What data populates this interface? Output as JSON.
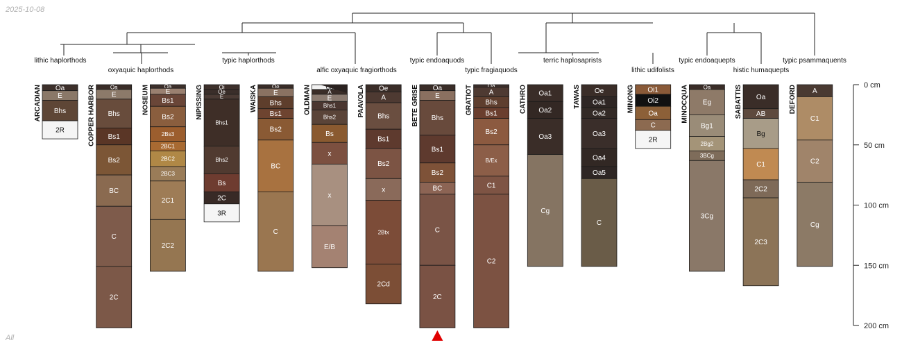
{
  "date_stamp": "2025-10-08",
  "filter_label": "All",
  "depth_axis": {
    "max_depth": 200,
    "ticks": [
      {
        "depth": 0,
        "label": "0 cm"
      },
      {
        "depth": 50,
        "label": "50 cm"
      },
      {
        "depth": 100,
        "label": "100 cm"
      },
      {
        "depth": 150,
        "label": "150 cm"
      },
      {
        "depth": 200,
        "label": "200 cm"
      }
    ]
  },
  "marker": {
    "profile": "BETE GRISE",
    "color": "#e00000"
  },
  "taxonomy": [
    {
      "label": "lithic haplorthods"
    },
    {
      "label": "oxyaquic haplorthods"
    },
    {
      "label": "typic haplorthods"
    },
    {
      "label": "alfic oxyaquic fragiorthods"
    },
    {
      "label": "typic endoaquods"
    },
    {
      "label": "typic fragiaquods"
    },
    {
      "label": "terric haplosaprists"
    },
    {
      "label": "lithic udifolists"
    },
    {
      "label": "typic endoaquepts"
    },
    {
      "label": "histic humaquepts"
    },
    {
      "label": "typic psammaquents"
    }
  ],
  "profiles": [
    {
      "name": "ARCADIAN",
      "horizons": [
        {
          "name": "Oa",
          "top": 0,
          "bottom": 5,
          "color": "#3d302b"
        },
        {
          "name": "E",
          "top": 5,
          "bottom": 13,
          "color": "#8a7868"
        },
        {
          "name": "Bhs",
          "top": 13,
          "bottom": 30,
          "color": "#5e4636"
        },
        {
          "name": "2R",
          "top": 30,
          "bottom": 45,
          "color": "#f5f5f5"
        }
      ]
    },
    {
      "name": "COPPER HARBOR",
      "horizons": [
        {
          "name": "Oa",
          "top": 0,
          "bottom": 4,
          "color": "#3a2d28"
        },
        {
          "name": "E",
          "top": 4,
          "bottom": 12,
          "color": "#8c7a6a"
        },
        {
          "name": "Bhs",
          "top": 12,
          "bottom": 36,
          "color": "#684c3c"
        },
        {
          "name": "Bs1",
          "top": 36,
          "bottom": 50,
          "color": "#5a3626"
        },
        {
          "name": "Bs2",
          "top": 50,
          "bottom": 75,
          "color": "#7c5636"
        },
        {
          "name": "BC",
          "top": 75,
          "bottom": 101,
          "color": "#8a6a50"
        },
        {
          "name": "C",
          "top": 101,
          "bottom": 151,
          "color": "#7e5b4b"
        },
        {
          "name": "2C",
          "top": 151,
          "bottom": 202,
          "color": "#7c5848"
        }
      ]
    },
    {
      "name": "NOSEUM",
      "horizons": [
        {
          "name": "Oa",
          "top": 0,
          "bottom": 3,
          "color": "#3d302b"
        },
        {
          "name": "E",
          "top": 3,
          "bottom": 8,
          "color": "#9a8070"
        },
        {
          "name": "Bs1",
          "top": 8,
          "bottom": 18,
          "color": "#6a4638"
        },
        {
          "name": "Bs2",
          "top": 18,
          "bottom": 35,
          "color": "#8a5e3e"
        },
        {
          "name": "2Bs3",
          "top": 35,
          "bottom": 47,
          "color": "#9c5e2e"
        },
        {
          "name": "2BC1",
          "top": 47,
          "bottom": 55,
          "color": "#a86a32"
        },
        {
          "name": "2BC2",
          "top": 55,
          "bottom": 68,
          "color": "#b08846"
        },
        {
          "name": "2BC3",
          "top": 68,
          "bottom": 80,
          "color": "#9a7c58"
        },
        {
          "name": "2C1",
          "top": 80,
          "bottom": 112,
          "color": "#9e7c56"
        },
        {
          "name": "2C2",
          "top": 112,
          "bottom": 155,
          "color": "#957651"
        }
      ]
    },
    {
      "name": "NIPISSING",
      "horizons": [
        {
          "name": "Oi",
          "top": 0,
          "bottom": 4,
          "color": "#3d302b"
        },
        {
          "name": "Oe",
          "top": 4,
          "bottom": 8,
          "color": "#3a2e2a"
        },
        {
          "name": "E",
          "top": 8,
          "bottom": 12,
          "color": "#4a3a34"
        },
        {
          "name": "Bhs1",
          "top": 12,
          "bottom": 51,
          "color": "#3e2e27"
        },
        {
          "name": "Bhs2",
          "top": 51,
          "bottom": 74,
          "color": "#503a30"
        },
        {
          "name": "Bs",
          "top": 74,
          "bottom": 89,
          "color": "#6e3c30"
        },
        {
          "name": "2C",
          "top": 89,
          "bottom": 99,
          "color": "#382a26"
        },
        {
          "name": "3R",
          "top": 99,
          "bottom": 114,
          "color": "#f5f5f5"
        }
      ]
    },
    {
      "name": "WAISKA",
      "horizons": [
        {
          "name": "Oe",
          "top": 0,
          "bottom": 3,
          "color": "#3a2d28"
        },
        {
          "name": "E",
          "top": 3,
          "bottom": 10,
          "color": "#8a7262"
        },
        {
          "name": "Bhs",
          "top": 10,
          "bottom": 20,
          "color": "#5e3e2c"
        },
        {
          "name": "Bs1",
          "top": 20,
          "bottom": 28,
          "color": "#6e4430"
        },
        {
          "name": "Bs2",
          "top": 28,
          "bottom": 46,
          "color": "#8a5a34"
        },
        {
          "name": "BC",
          "top": 46,
          "bottom": 89,
          "color": "#a87240"
        },
        {
          "name": "C",
          "top": 89,
          "bottom": 155,
          "color": "#9a7650"
        }
      ]
    },
    {
      "name": "OLDMAN",
      "horizons": [
        {
          "name": "Oa",
          "top": 0,
          "bottom": 4,
          "color": "#f2f2f2"
        },
        {
          "name": "A",
          "top": 4,
          "bottom": 8,
          "color": "#3a2d28"
        },
        {
          "name": "E",
          "top": 8,
          "bottom": 14,
          "color": "#8a7a70"
        },
        {
          "name": "Bhs1",
          "top": 14,
          "bottom": 21,
          "color": "#4a3630"
        },
        {
          "name": "Bhs2",
          "top": 21,
          "bottom": 33,
          "color": "#5a4438"
        },
        {
          "name": "Bs",
          "top": 33,
          "bottom": 48,
          "color": "#8a5a30"
        },
        {
          "name": "x",
          "top": 48,
          "bottom": 66,
          "color": "#7c5040"
        },
        {
          "name": "x",
          "top": 66,
          "bottom": 117,
          "color": "#a89080"
        },
        {
          "name": "E/B",
          "top": 117,
          "bottom": 152,
          "color": "#a48272"
        }
      ]
    },
    {
      "name": "PAAVOLA",
      "horizons": [
        {
          "name": "Oe",
          "top": 0,
          "bottom": 6,
          "color": "#3a2d28"
        },
        {
          "name": "A",
          "top": 6,
          "bottom": 15,
          "color": "#4e3a32"
        },
        {
          "name": "Bhs",
          "top": 15,
          "bottom": 37,
          "color": "#6a4e40"
        },
        {
          "name": "Bs1",
          "top": 37,
          "bottom": 53,
          "color": "#5e3a2e"
        },
        {
          "name": "Bs2",
          "top": 53,
          "bottom": 78,
          "color": "#7c5444"
        },
        {
          "name": "x",
          "top": 78,
          "bottom": 96,
          "color": "#8a6a5a"
        },
        {
          "name": "2Btx",
          "top": 96,
          "bottom": 149,
          "color": "#7c4c38"
        },
        {
          "name": "2Cd",
          "top": 149,
          "bottom": 182,
          "color": "#7c4e36"
        }
      ]
    },
    {
      "name": "BETE GRISE",
      "horizons": [
        {
          "name": "Oa",
          "top": 0,
          "bottom": 5,
          "color": "#3a2d28"
        },
        {
          "name": "E",
          "top": 5,
          "bottom": 13,
          "color": "#8a7060"
        },
        {
          "name": "Bhs",
          "top": 13,
          "bottom": 42,
          "color": "#684a3c"
        },
        {
          "name": "Bs1",
          "top": 42,
          "bottom": 65,
          "color": "#5e3a2e"
        },
        {
          "name": "Bs2",
          "top": 65,
          "bottom": 81,
          "color": "#7e5238"
        },
        {
          "name": "BC",
          "top": 81,
          "bottom": 91,
          "color": "#8c6454"
        },
        {
          "name": "C",
          "top": 91,
          "bottom": 150,
          "color": "#7a5446"
        },
        {
          "name": "2C",
          "top": 150,
          "bottom": 202,
          "color": "#7a5244"
        }
      ]
    },
    {
      "name": "GRATIOT",
      "horizons": [
        {
          "name": "Oa",
          "top": 0,
          "bottom": 2,
          "color": "#3d302b"
        },
        {
          "name": "A",
          "top": 2,
          "bottom": 10,
          "color": "#4e3a32"
        },
        {
          "name": "Bhs",
          "top": 10,
          "bottom": 19,
          "color": "#5e3e2e"
        },
        {
          "name": "Bs1",
          "top": 19,
          "bottom": 28,
          "color": "#6a3e2e"
        },
        {
          "name": "Bs2",
          "top": 28,
          "bottom": 50,
          "color": "#8c5a40"
        },
        {
          "name": "B/Ex",
          "top": 50,
          "bottom": 76,
          "color": "#8c5e48"
        },
        {
          "name": "C1",
          "top": 76,
          "bottom": 91,
          "color": "#7e5444"
        },
        {
          "name": "C2",
          "top": 91,
          "bottom": 202,
          "color": "#7c5242"
        }
      ]
    },
    {
      "name": "CATHRO",
      "horizons": [
        {
          "name": "Oa1",
          "top": 0,
          "bottom": 14,
          "color": "#3a2d28"
        },
        {
          "name": "Oa2",
          "top": 14,
          "bottom": 28,
          "color": "#332824"
        },
        {
          "name": "Oa3",
          "top": 28,
          "bottom": 58,
          "color": "#3a2d28"
        },
        {
          "name": "Cg",
          "top": 58,
          "bottom": 151,
          "color": "#857462"
        }
      ]
    },
    {
      "name": "TAWAS",
      "horizons": [
        {
          "name": "Oe",
          "top": 0,
          "bottom": 10,
          "color": "#3a2d28"
        },
        {
          "name": "Oa1",
          "top": 10,
          "bottom": 19,
          "color": "#2e2624"
        },
        {
          "name": "Oa2",
          "top": 19,
          "bottom": 28,
          "color": "#332a26"
        },
        {
          "name": "Oa3",
          "top": 28,
          "bottom": 53,
          "color": "#3a2e2a"
        },
        {
          "name": "Oa4",
          "top": 53,
          "bottom": 68,
          "color": "#322824"
        },
        {
          "name": "Oa5",
          "top": 68,
          "bottom": 78,
          "color": "#2e2624"
        },
        {
          "name": "C",
          "top": 78,
          "bottom": 151,
          "color": "#6a5c48"
        }
      ]
    },
    {
      "name": "MINONG",
      "horizons": [
        {
          "name": "Oi1",
          "top": 0,
          "bottom": 8,
          "color": "#8a5a38"
        },
        {
          "name": "Oi2",
          "top": 8,
          "bottom": 18,
          "color": "#111111"
        },
        {
          "name": "Oa",
          "top": 18,
          "bottom": 29,
          "color": "#8c6038"
        },
        {
          "name": "C",
          "top": 29,
          "bottom": 38,
          "color": "#8c6a50"
        },
        {
          "name": "2R",
          "top": 38,
          "bottom": 53,
          "color": "#f5f5f5"
        }
      ]
    },
    {
      "name": "MINOCQUA",
      "horizons": [
        {
          "name": "Oa",
          "top": 0,
          "bottom": 4,
          "color": "#3a2d28"
        },
        {
          "name": "Eg",
          "top": 4,
          "bottom": 25,
          "color": "#8e7a68"
        },
        {
          "name": "Bg1",
          "top": 25,
          "bottom": 43,
          "color": "#9a8c78"
        },
        {
          "name": "2Bg2",
          "top": 43,
          "bottom": 55,
          "color": "#a49478"
        },
        {
          "name": "3BCg",
          "top": 55,
          "bottom": 63,
          "color": "#7e6c5a"
        },
        {
          "name": "3Cg",
          "top": 63,
          "bottom": 155,
          "color": "#8a7868"
        }
      ]
    },
    {
      "name": "SABATTIS",
      "horizons": [
        {
          "name": "Oa",
          "top": 0,
          "bottom": 20,
          "color": "#3a2d28"
        },
        {
          "name": "AB",
          "top": 20,
          "bottom": 28,
          "color": "#5e4a3e"
        },
        {
          "name": "Bg",
          "top": 28,
          "bottom": 53,
          "color": "#a89c88"
        },
        {
          "name": "C1",
          "top": 53,
          "bottom": 79,
          "color": "#c08a52"
        },
        {
          "name": "2C2",
          "top": 79,
          "bottom": 94,
          "color": "#7e6a58"
        },
        {
          "name": "2C3",
          "top": 94,
          "bottom": 167,
          "color": "#8c7458"
        }
      ]
    },
    {
      "name": "DEFORD",
      "horizons": [
        {
          "name": "A",
          "top": 0,
          "bottom": 10,
          "color": "#4a3a32"
        },
        {
          "name": "C1",
          "top": 10,
          "bottom": 46,
          "color": "#ae8c66"
        },
        {
          "name": "C2",
          "top": 46,
          "bottom": 81,
          "color": "#a0846a"
        },
        {
          "name": "Cg",
          "top": 81,
          "bottom": 151,
          "color": "#8c7a66"
        }
      ]
    }
  ]
}
